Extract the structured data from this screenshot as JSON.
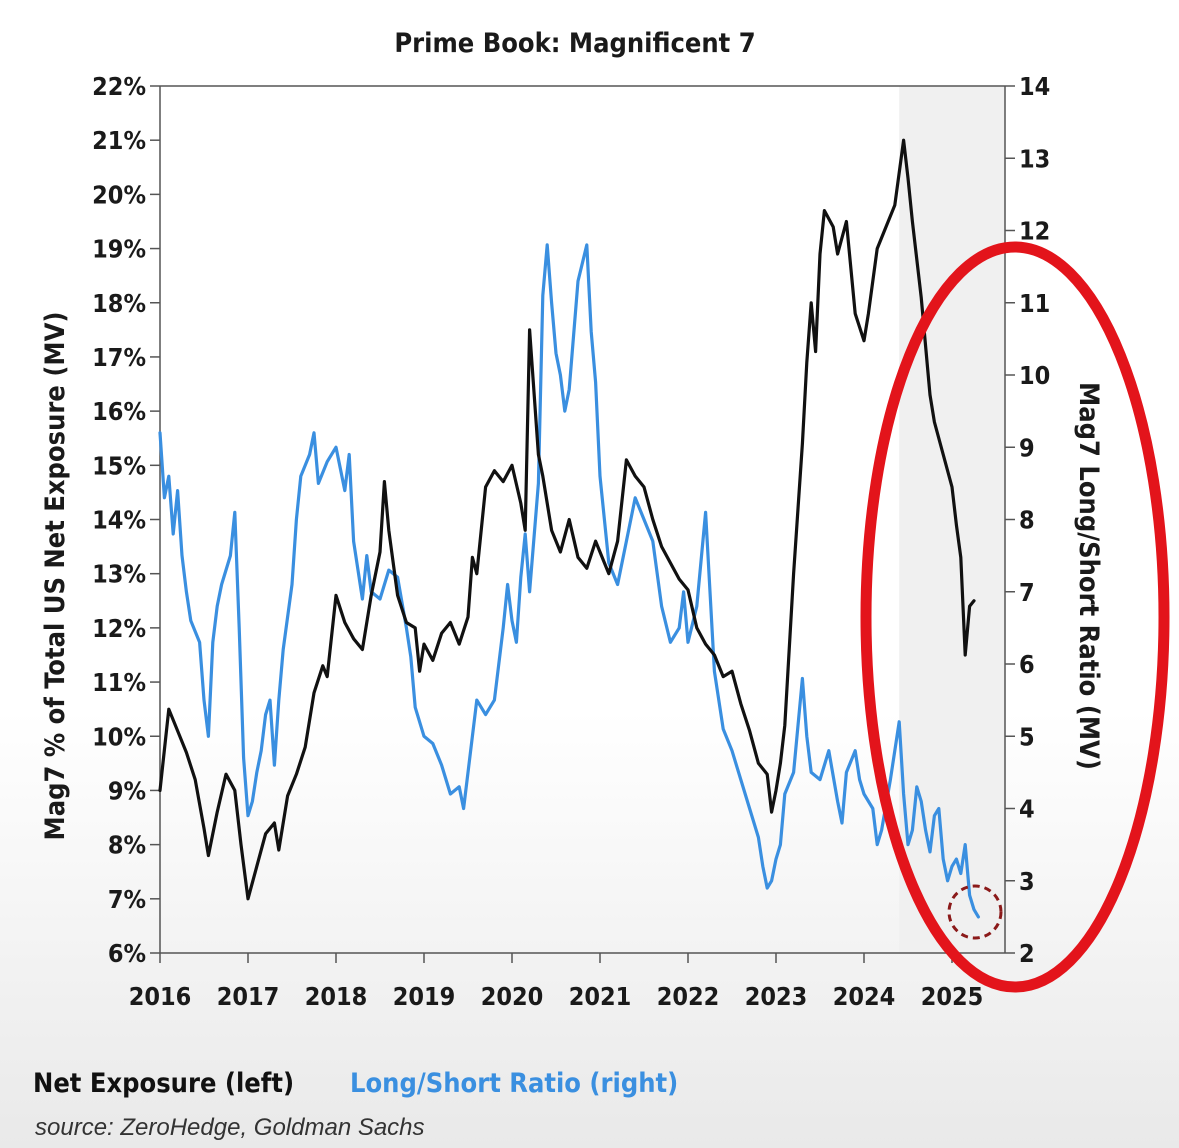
{
  "chart_data": {
    "type": "line",
    "title": "Prime Book: Magnificent 7",
    "ylabel_left": "Mag7 % of Total US Net Exposure (MV)",
    "ylabel_right": "Mag7 Long/Short Ratio (MV)",
    "x_ticks": [
      "2016",
      "2017",
      "2018",
      "2019",
      "2020",
      "2021",
      "2022",
      "2023",
      "2024",
      "2025"
    ],
    "y_left_ticks": [
      "6%",
      "7%",
      "8%",
      "9%",
      "10%",
      "11%",
      "12%",
      "13%",
      "14%",
      "15%",
      "16%",
      "17%",
      "18%",
      "19%",
      "20%",
      "21%",
      "22%"
    ],
    "y_right_ticks": [
      "2",
      "3",
      "4",
      "5",
      "6",
      "7",
      "8",
      "9",
      "10",
      "11",
      "12",
      "13",
      "14"
    ],
    "xlim": [
      2016,
      2025.4
    ],
    "ylim_left": [
      6,
      22
    ],
    "ylim_right": [
      2,
      14
    ],
    "legend": [
      {
        "label": "Net Exposure (left)",
        "color": "#111111"
      },
      {
        "label": "Long/Short Ratio (right)",
        "color": "#3a8fe0"
      }
    ],
    "source": "source: ZeroHedge, Goldman Sachs",
    "series": [
      {
        "name": "Net Exposure (left)",
        "axis": "left",
        "color": "#111111",
        "points": [
          [
            2016.0,
            9.0
          ],
          [
            2016.1,
            10.5
          ],
          [
            2016.2,
            10.1
          ],
          [
            2016.3,
            9.7
          ],
          [
            2016.4,
            9.2
          ],
          [
            2016.5,
            8.3
          ],
          [
            2016.55,
            7.8
          ],
          [
            2016.65,
            8.6
          ],
          [
            2016.75,
            9.3
          ],
          [
            2016.85,
            9.0
          ],
          [
            2016.92,
            8.0
          ],
          [
            2017.0,
            7.0
          ],
          [
            2017.1,
            7.6
          ],
          [
            2017.2,
            8.2
          ],
          [
            2017.3,
            8.4
          ],
          [
            2017.35,
            7.9
          ],
          [
            2017.45,
            8.9
          ],
          [
            2017.55,
            9.3
          ],
          [
            2017.65,
            9.8
          ],
          [
            2017.75,
            10.8
          ],
          [
            2017.85,
            11.3
          ],
          [
            2017.9,
            11.1
          ],
          [
            2018.0,
            12.6
          ],
          [
            2018.1,
            12.1
          ],
          [
            2018.2,
            11.8
          ],
          [
            2018.3,
            11.6
          ],
          [
            2018.4,
            12.6
          ],
          [
            2018.5,
            13.4
          ],
          [
            2018.55,
            14.7
          ],
          [
            2018.6,
            13.8
          ],
          [
            2018.7,
            12.6
          ],
          [
            2018.8,
            12.1
          ],
          [
            2018.9,
            12.0
          ],
          [
            2018.95,
            11.2
          ],
          [
            2019.0,
            11.7
          ],
          [
            2019.1,
            11.4
          ],
          [
            2019.2,
            11.9
          ],
          [
            2019.3,
            12.1
          ],
          [
            2019.4,
            11.7
          ],
          [
            2019.5,
            12.2
          ],
          [
            2019.55,
            13.3
          ],
          [
            2019.6,
            13.0
          ],
          [
            2019.7,
            14.6
          ],
          [
            2019.8,
            14.9
          ],
          [
            2019.9,
            14.7
          ],
          [
            2020.0,
            15.0
          ],
          [
            2020.1,
            14.3
          ],
          [
            2020.15,
            13.8
          ],
          [
            2020.2,
            17.5
          ],
          [
            2020.3,
            15.2
          ],
          [
            2020.35,
            14.8
          ],
          [
            2020.45,
            13.8
          ],
          [
            2020.55,
            13.4
          ],
          [
            2020.65,
            14.0
          ],
          [
            2020.75,
            13.3
          ],
          [
            2020.85,
            13.1
          ],
          [
            2020.95,
            13.6
          ],
          [
            2021.0,
            13.4
          ],
          [
            2021.1,
            13.0
          ],
          [
            2021.2,
            13.6
          ],
          [
            2021.3,
            15.1
          ],
          [
            2021.4,
            14.8
          ],
          [
            2021.5,
            14.6
          ],
          [
            2021.6,
            14.0
          ],
          [
            2021.7,
            13.5
          ],
          [
            2021.8,
            13.2
          ],
          [
            2021.9,
            12.9
          ],
          [
            2022.0,
            12.7
          ],
          [
            2022.1,
            12.0
          ],
          [
            2022.2,
            11.7
          ],
          [
            2022.3,
            11.5
          ],
          [
            2022.4,
            11.1
          ],
          [
            2022.5,
            11.2
          ],
          [
            2022.6,
            10.6
          ],
          [
            2022.7,
            10.1
          ],
          [
            2022.8,
            9.5
          ],
          [
            2022.9,
            9.3
          ],
          [
            2022.95,
            8.6
          ],
          [
            2023.0,
            9.0
          ],
          [
            2023.05,
            9.5
          ],
          [
            2023.1,
            10.2
          ],
          [
            2023.2,
            13.0
          ],
          [
            2023.3,
            15.4
          ],
          [
            2023.35,
            16.9
          ],
          [
            2023.4,
            18.0
          ],
          [
            2023.45,
            17.1
          ],
          [
            2023.5,
            18.9
          ],
          [
            2023.55,
            19.7
          ],
          [
            2023.65,
            19.4
          ],
          [
            2023.7,
            18.9
          ],
          [
            2023.8,
            19.5
          ],
          [
            2023.9,
            17.8
          ],
          [
            2024.0,
            17.3
          ],
          [
            2024.05,
            17.8
          ],
          [
            2024.15,
            19.0
          ],
          [
            2024.25,
            19.4
          ],
          [
            2024.35,
            19.8
          ],
          [
            2024.45,
            21.0
          ],
          [
            2024.5,
            20.3
          ],
          [
            2024.55,
            19.5
          ],
          [
            2024.65,
            18.1
          ],
          [
            2024.75,
            16.3
          ],
          [
            2024.8,
            15.8
          ],
          [
            2024.9,
            15.2
          ],
          [
            2025.0,
            14.6
          ],
          [
            2025.05,
            13.9
          ],
          [
            2025.1,
            13.3
          ],
          [
            2025.15,
            11.5
          ],
          [
            2025.2,
            12.4
          ],
          [
            2025.25,
            12.5
          ]
        ]
      },
      {
        "name": "Long/Short Ratio (right)",
        "axis": "right",
        "color": "#3a8fe0",
        "points": [
          [
            2016.0,
            9.2
          ],
          [
            2016.05,
            8.3
          ],
          [
            2016.1,
            8.6
          ],
          [
            2016.15,
            7.8
          ],
          [
            2016.2,
            8.4
          ],
          [
            2016.25,
            7.5
          ],
          [
            2016.3,
            7.0
          ],
          [
            2016.35,
            6.6
          ],
          [
            2016.45,
            6.3
          ],
          [
            2016.5,
            5.5
          ],
          [
            2016.55,
            5.0
          ],
          [
            2016.6,
            6.3
          ],
          [
            2016.65,
            6.8
          ],
          [
            2016.7,
            7.1
          ],
          [
            2016.8,
            7.5
          ],
          [
            2016.85,
            8.1
          ],
          [
            2016.9,
            6.5
          ],
          [
            2016.95,
            4.7
          ],
          [
            2017.0,
            3.9
          ],
          [
            2017.05,
            4.1
          ],
          [
            2017.1,
            4.5
          ],
          [
            2017.15,
            4.8
          ],
          [
            2017.2,
            5.3
          ],
          [
            2017.25,
            5.5
          ],
          [
            2017.3,
            4.6
          ],
          [
            2017.35,
            5.5
          ],
          [
            2017.4,
            6.2
          ],
          [
            2017.5,
            7.1
          ],
          [
            2017.55,
            8.0
          ],
          [
            2017.6,
            8.6
          ],
          [
            2017.7,
            8.9
          ],
          [
            2017.75,
            9.2
          ],
          [
            2017.8,
            8.5
          ],
          [
            2017.9,
            8.8
          ],
          [
            2018.0,
            9.0
          ],
          [
            2018.1,
            8.4
          ],
          [
            2018.15,
            8.9
          ],
          [
            2018.2,
            7.7
          ],
          [
            2018.3,
            6.9
          ],
          [
            2018.35,
            7.5
          ],
          [
            2018.4,
            7.0
          ],
          [
            2018.5,
            6.9
          ],
          [
            2018.6,
            7.3
          ],
          [
            2018.7,
            7.2
          ],
          [
            2018.8,
            6.5
          ],
          [
            2018.85,
            6.1
          ],
          [
            2018.9,
            5.4
          ],
          [
            2018.95,
            5.2
          ],
          [
            2019.0,
            5.0
          ],
          [
            2019.1,
            4.9
          ],
          [
            2019.2,
            4.6
          ],
          [
            2019.3,
            4.2
          ],
          [
            2019.4,
            4.3
          ],
          [
            2019.45,
            4.0
          ],
          [
            2019.5,
            4.5
          ],
          [
            2019.6,
            5.5
          ],
          [
            2019.7,
            5.3
          ],
          [
            2019.8,
            5.5
          ],
          [
            2019.9,
            6.5
          ],
          [
            2019.95,
            7.1
          ],
          [
            2020.0,
            6.6
          ],
          [
            2020.05,
            6.3
          ],
          [
            2020.1,
            7.2
          ],
          [
            2020.15,
            7.8
          ],
          [
            2020.2,
            7.0
          ],
          [
            2020.3,
            8.5
          ],
          [
            2020.35,
            11.1
          ],
          [
            2020.4,
            11.8
          ],
          [
            2020.45,
            11.0
          ],
          [
            2020.5,
            10.3
          ],
          [
            2020.55,
            10.0
          ],
          [
            2020.6,
            9.5
          ],
          [
            2020.65,
            9.8
          ],
          [
            2020.75,
            11.3
          ],
          [
            2020.85,
            11.8
          ],
          [
            2020.9,
            10.6
          ],
          [
            2020.95,
            9.9
          ],
          [
            2021.0,
            8.6
          ],
          [
            2021.05,
            8.0
          ],
          [
            2021.1,
            7.4
          ],
          [
            2021.2,
            7.1
          ],
          [
            2021.3,
            7.7
          ],
          [
            2021.4,
            8.3
          ],
          [
            2021.5,
            8.0
          ],
          [
            2021.6,
            7.7
          ],
          [
            2021.7,
            6.8
          ],
          [
            2021.8,
            6.3
          ],
          [
            2021.9,
            6.5
          ],
          [
            2021.95,
            7.0
          ],
          [
            2022.0,
            6.3
          ],
          [
            2022.1,
            6.8
          ],
          [
            2022.2,
            8.1
          ],
          [
            2022.25,
            7.0
          ],
          [
            2022.3,
            5.9
          ],
          [
            2022.4,
            5.1
          ],
          [
            2022.5,
            4.8
          ],
          [
            2022.6,
            4.4
          ],
          [
            2022.7,
            4.0
          ],
          [
            2022.8,
            3.6
          ],
          [
            2022.85,
            3.2
          ],
          [
            2022.9,
            2.9
          ],
          [
            2022.95,
            3.0
          ],
          [
            2023.0,
            3.3
          ],
          [
            2023.05,
            3.5
          ],
          [
            2023.1,
            4.2
          ],
          [
            2023.2,
            4.5
          ],
          [
            2023.3,
            5.8
          ],
          [
            2023.35,
            5.0
          ],
          [
            2023.4,
            4.5
          ],
          [
            2023.5,
            4.4
          ],
          [
            2023.6,
            4.8
          ],
          [
            2023.7,
            4.1
          ],
          [
            2023.75,
            3.8
          ],
          [
            2023.8,
            4.5
          ],
          [
            2023.9,
            4.8
          ],
          [
            2023.95,
            4.4
          ],
          [
            2024.0,
            4.2
          ],
          [
            2024.1,
            4.0
          ],
          [
            2024.15,
            3.5
          ],
          [
            2024.2,
            3.7
          ],
          [
            2024.3,
            4.4
          ],
          [
            2024.35,
            4.8
          ],
          [
            2024.4,
            5.2
          ],
          [
            2024.45,
            4.2
          ],
          [
            2024.5,
            3.5
          ],
          [
            2024.55,
            3.7
          ],
          [
            2024.6,
            4.3
          ],
          [
            2024.65,
            4.1
          ],
          [
            2024.7,
            3.7
          ],
          [
            2024.75,
            3.4
          ],
          [
            2024.8,
            3.9
          ],
          [
            2024.85,
            4.0
          ],
          [
            2024.9,
            3.3
          ],
          [
            2024.95,
            3.0
          ],
          [
            2025.0,
            3.2
          ],
          [
            2025.05,
            3.3
          ],
          [
            2025.1,
            3.1
          ],
          [
            2025.15,
            3.5
          ],
          [
            2025.2,
            2.8
          ],
          [
            2025.25,
            2.6
          ],
          [
            2025.3,
            2.5
          ]
        ]
      }
    ]
  }
}
